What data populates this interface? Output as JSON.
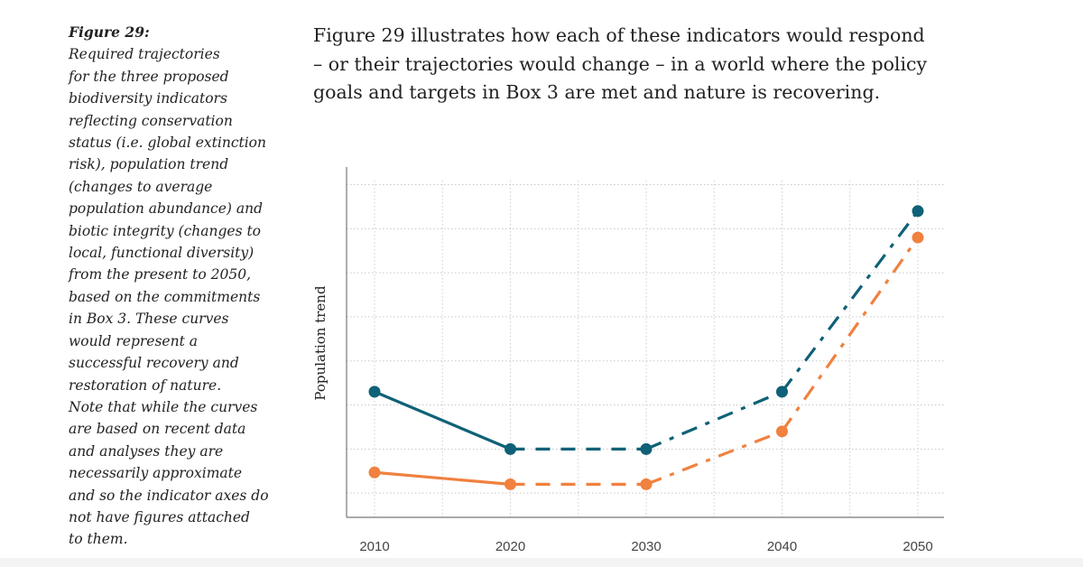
{
  "caption": {
    "label": "Figure 29:",
    "lines": [
      "Required trajectories",
      "for the three proposed",
      "biodiversity indicators",
      "reflecting conservation",
      "status (i.e. global extinction",
      "risk), population trend",
      "(changes to average",
      "population abundance) and",
      "biotic integrity (changes to",
      "local, functional diversity)",
      "from the present to 2050,",
      "based on the commitments",
      "in Box 3. These curves",
      "would represent a",
      "successful recovery and",
      "restoration of nature.",
      "Note that while the curves",
      "are based on recent data",
      "and analyses they are",
      "necessarily approximate",
      "and so the indicator axes do",
      "not have figures attached",
      "to them."
    ]
  },
  "intro": {
    "lines": [
      "Figure 29 illustrates how each of these indicators would respond",
      "– or their trajectories would change – in a world where the policy",
      "goals and targets in Box 3 are met and nature is recovering."
    ]
  },
  "chart_data": {
    "type": "line",
    "title": "",
    "xlabel": "",
    "ylabel": "Population trend",
    "x": [
      2010,
      2020,
      2030,
      2040,
      2050
    ],
    "x_tick_labels": [
      "2010",
      "2020",
      "2030",
      "2040",
      "2050"
    ],
    "xlim": [
      2008,
      2051
    ],
    "ylim": [
      -0.55,
      7.4
    ],
    "y_tick_labels_shown": false,
    "grid": true,
    "grid_style": "dotted",
    "legend": "none",
    "line_styles_by_segment": [
      "solid",
      "dashed",
      "dash-dot",
      "dash-dot"
    ],
    "series": [
      {
        "color": "#0f6177",
        "values": [
          2.3,
          1.0,
          1.0,
          2.3,
          6.4
        ]
      },
      {
        "color": "#f0813f",
        "values": [
          0.47,
          0.2,
          0.2,
          1.4,
          5.8
        ]
      }
    ]
  }
}
